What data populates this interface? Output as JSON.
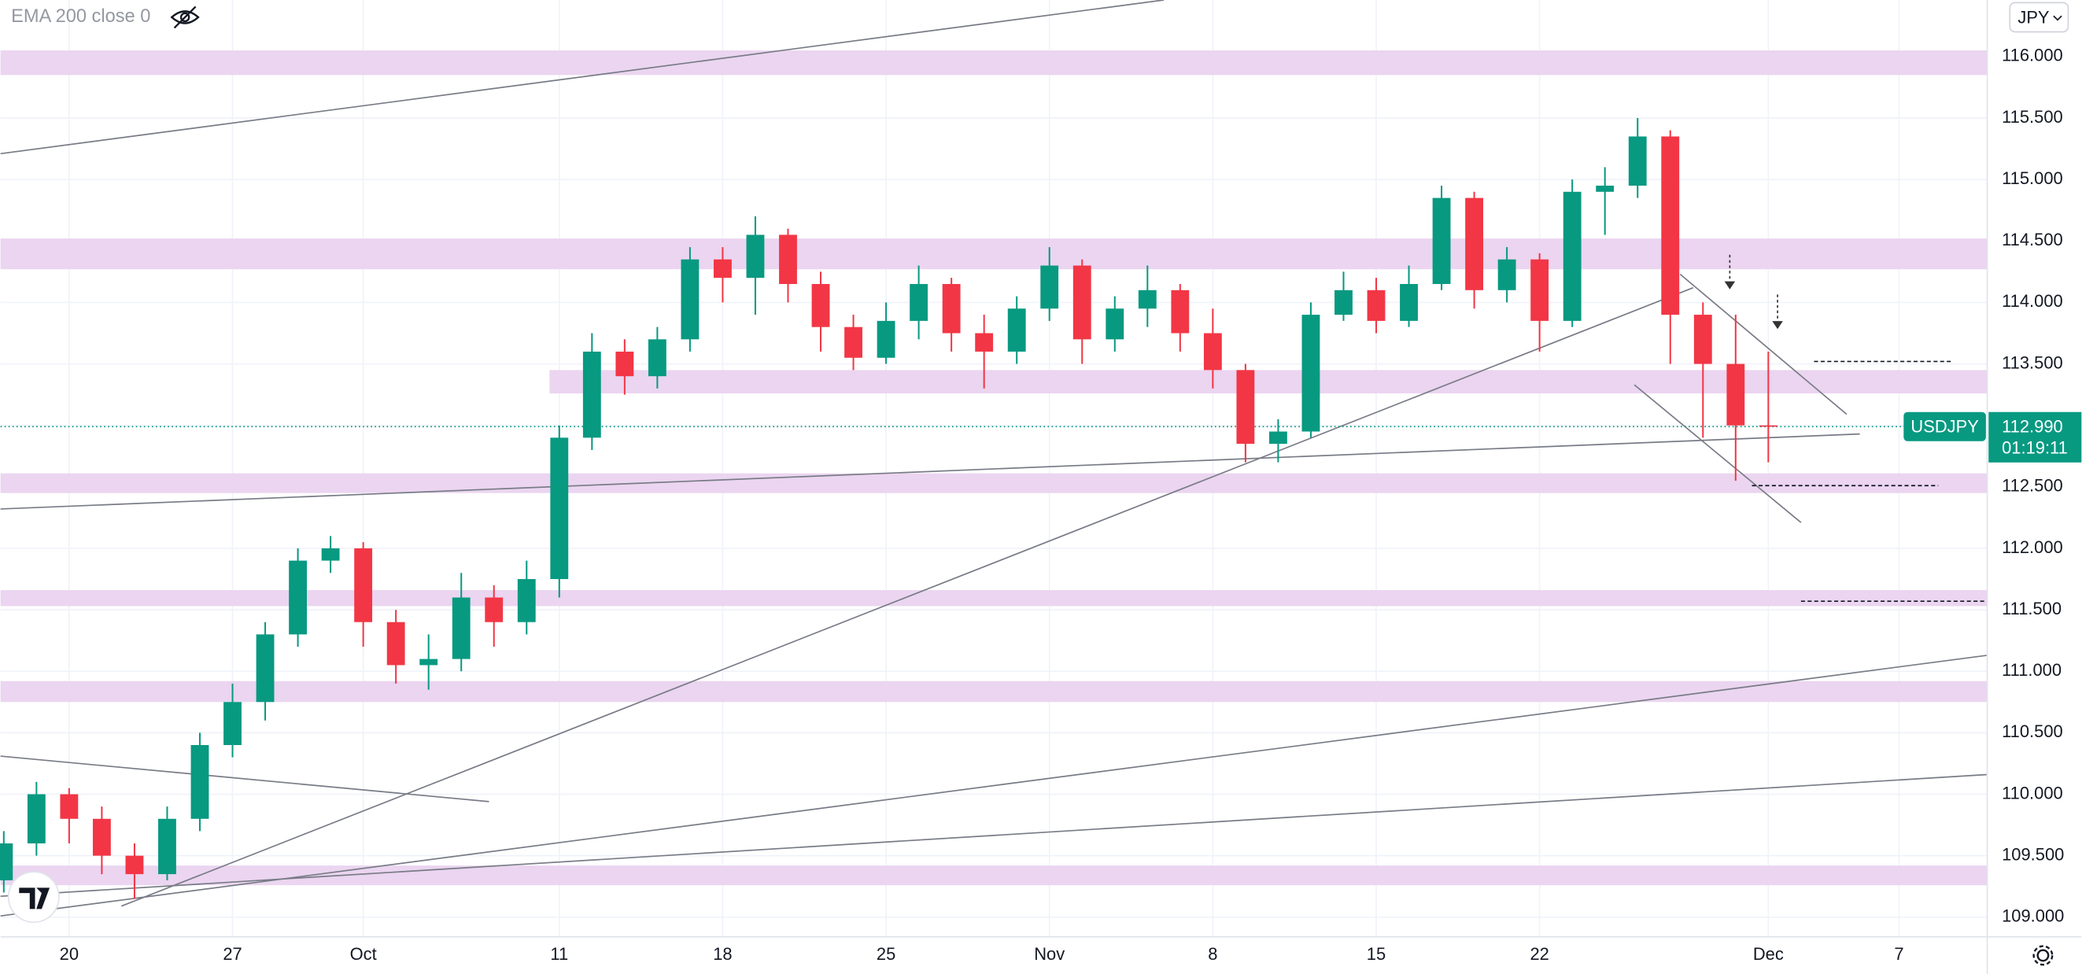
{
  "chart_data": {
    "type": "candlestick",
    "indicator": "EMA 200 close 0",
    "currency": "JPY",
    "symbol": "USDJPY",
    "countdown": "01:19:11",
    "last_price": {
      "value": 112.99,
      "label": "112.990"
    },
    "up_color": "#089981",
    "down_color": "#f23645",
    "x": [
      -2,
      -1,
      0,
      1,
      2,
      3,
      4,
      5,
      6,
      7,
      8,
      9,
      10,
      11,
      12,
      13,
      14,
      15,
      16,
      17,
      18,
      19,
      20,
      21,
      22,
      23,
      24,
      25,
      26,
      27,
      28,
      29,
      30,
      31,
      32,
      33,
      34,
      35,
      36,
      37,
      38,
      39,
      40,
      41,
      42,
      43,
      44,
      45,
      46,
      47,
      48,
      49,
      50,
      51,
      52
    ],
    "open": [
      109.3,
      109.6,
      110.0,
      109.8,
      109.5,
      109.35,
      109.8,
      110.4,
      110.75,
      111.3,
      111.9,
      112.0,
      111.4,
      111.05,
      111.1,
      111.6,
      111.4,
      111.75,
      112.9,
      113.6,
      113.4,
      113.7,
      114.35,
      114.2,
      114.55,
      114.15,
      113.8,
      113.55,
      113.85,
      114.15,
      113.75,
      113.6,
      113.95,
      114.3,
      113.7,
      113.95,
      114.1,
      113.75,
      113.45,
      112.85,
      112.95,
      113.9,
      114.1,
      113.85,
      114.15,
      114.85,
      114.1,
      114.35,
      113.85,
      114.9,
      114.95,
      115.35,
      113.9,
      113.5,
      113.0
    ],
    "high": [
      109.7,
      110.1,
      110.05,
      109.9,
      109.6,
      109.9,
      110.5,
      110.9,
      111.4,
      112.0,
      112.1,
      112.05,
      111.5,
      111.3,
      111.8,
      111.7,
      111.9,
      113.0,
      113.75,
      113.7,
      113.8,
      114.45,
      114.45,
      114.7,
      114.6,
      114.25,
      113.9,
      114.0,
      114.3,
      114.2,
      113.9,
      114.05,
      114.45,
      114.35,
      114.05,
      114.3,
      114.15,
      113.95,
      113.5,
      113.05,
      114.0,
      114.25,
      114.2,
      114.3,
      114.95,
      114.9,
      114.45,
      114.4,
      115.0,
      115.1,
      115.5,
      115.4,
      114.0,
      113.9,
      113.6
    ],
    "low": [
      109.2,
      109.5,
      109.6,
      109.35,
      109.15,
      109.3,
      109.7,
      110.3,
      110.6,
      111.2,
      111.8,
      111.2,
      110.9,
      110.85,
      111.0,
      111.2,
      111.3,
      111.6,
      112.8,
      113.25,
      113.3,
      113.6,
      114.0,
      113.9,
      114.0,
      113.6,
      113.45,
      113.5,
      113.7,
      113.6,
      113.3,
      113.5,
      113.85,
      113.5,
      113.6,
      113.8,
      113.6,
      113.3,
      112.7,
      112.7,
      112.9,
      113.85,
      113.75,
      113.8,
      114.1,
      113.95,
      114.0,
      113.6,
      113.8,
      114.55,
      114.85,
      113.5,
      112.9,
      112.55,
      112.7
    ],
    "close": [
      109.6,
      110.0,
      109.8,
      109.5,
      109.35,
      109.8,
      110.4,
      110.75,
      111.3,
      111.9,
      112.0,
      111.4,
      111.05,
      111.1,
      111.6,
      111.4,
      111.75,
      112.9,
      113.6,
      113.4,
      113.7,
      114.35,
      114.2,
      114.55,
      114.15,
      113.8,
      113.55,
      113.85,
      114.15,
      113.75,
      113.6,
      113.95,
      114.3,
      113.7,
      113.95,
      114.1,
      113.75,
      113.45,
      112.85,
      112.95,
      113.9,
      114.1,
      113.85,
      114.15,
      114.85,
      114.1,
      114.35,
      113.85,
      114.9,
      114.95,
      115.35,
      113.9,
      113.5,
      113.0,
      112.99
    ],
    "xlim": [
      -2.1,
      58.7
    ],
    "ylim": [
      108.84,
      116.46
    ],
    "xticks": [
      {
        "value": 0,
        "label": "20"
      },
      {
        "value": 5,
        "label": "27"
      },
      {
        "value": 9,
        "label": "Oct"
      },
      {
        "value": 15,
        "label": "11"
      },
      {
        "value": 20,
        "label": "18"
      },
      {
        "value": 25,
        "label": "25"
      },
      {
        "value": 30,
        "label": "Nov"
      },
      {
        "value": 35,
        "label": "8"
      },
      {
        "value": 40,
        "label": "15"
      },
      {
        "value": 45,
        "label": "22"
      },
      {
        "value": 52,
        "label": "Dec"
      },
      {
        "value": 56,
        "label": "7"
      }
    ],
    "yticks": [
      {
        "value": 109,
        "label": "109.000"
      },
      {
        "value": 109.5,
        "label": "109.500"
      },
      {
        "value": 110,
        "label": "110.000"
      },
      {
        "value": 110.5,
        "label": "110.500"
      },
      {
        "value": 111,
        "label": "111.000"
      },
      {
        "value": 111.5,
        "label": "111.500"
      },
      {
        "value": 112,
        "label": "112.000"
      },
      {
        "value": 112.5,
        "label": "112.500"
      },
      {
        "value": 113,
        "label": "113.000"
      },
      {
        "value": 113.5,
        "label": "113.500"
      },
      {
        "value": 114,
        "label": "114.000"
      },
      {
        "value": 114.5,
        "label": "114.500"
      },
      {
        "value": 115,
        "label": "115.000"
      },
      {
        "value": 115.5,
        "label": "115.500"
      },
      {
        "value": 116,
        "label": "116.000"
      }
    ],
    "grid": true,
    "zone_color": "#ebd5f0",
    "zones": [
      {
        "x": [
          -2.1,
          58.7
        ],
        "y": [
          115.85,
          116.05
        ]
      },
      {
        "x": [
          -2.1,
          58.7
        ],
        "y": [
          114.27,
          114.52
        ]
      },
      {
        "x": [
          14.7,
          58.7
        ],
        "y": [
          113.26,
          113.45
        ]
      },
      {
        "x": [
          -2.1,
          58.7
        ],
        "y": [
          112.45,
          112.61
        ]
      },
      {
        "x": [
          -2.1,
          58.7
        ],
        "y": [
          111.53,
          111.66
        ]
      },
      {
        "x": [
          -2.1,
          58.7
        ],
        "y": [
          110.75,
          110.92
        ]
      },
      {
        "x": [
          -2.1,
          58.7
        ],
        "y": [
          109.26,
          109.42
        ]
      }
    ],
    "line_color": "#787b86",
    "trendlines": [
      {
        "x": [
          -2.1,
          33.5
        ],
        "y": [
          115.21,
          116.46
        ]
      },
      {
        "x": [
          -2.1,
          54.8
        ],
        "y": [
          112.32,
          112.93
        ]
      },
      {
        "x": [
          1.6,
          49.7
        ],
        "y": [
          109.09,
          114.12
        ]
      },
      {
        "x": [
          -2.1,
          12.85
        ],
        "y": [
          110.31,
          109.94
        ]
      },
      {
        "x": [
          -2.1,
          58.7
        ],
        "y": [
          109.01,
          111.13
        ]
      },
      {
        "x": [
          -2.1,
          58.7
        ],
        "y": [
          109.17,
          110.16
        ]
      },
      {
        "x": [
          49.3,
          54.4
        ],
        "y": [
          114.23,
          113.09
        ]
      },
      {
        "x": [
          47.9,
          53.0
        ],
        "y": [
          113.33,
          112.21
        ]
      }
    ],
    "levels": [
      {
        "x": [
          53.4,
          57.6
        ],
        "y": 113.52
      },
      {
        "x": [
          51.5,
          57.2
        ],
        "y": 112.51
      },
      {
        "x": [
          53.0,
          58.7
        ],
        "y": 111.57
      }
    ]
  }
}
